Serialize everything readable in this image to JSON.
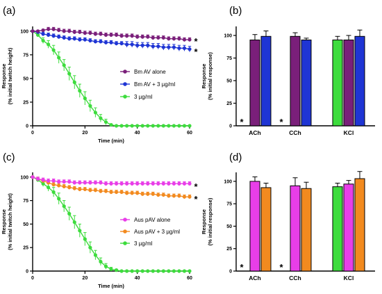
{
  "chart_data": [
    {
      "panel_label": "(a)",
      "type": "line",
      "xlabel": "Time (min)",
      "ylabel": [
        "Response",
        "(% initial twitch height)"
      ],
      "xlim": [
        0,
        60
      ],
      "ylim": [
        0,
        105
      ],
      "xticks": [
        0,
        20,
        40,
        60
      ],
      "yticks": [
        0,
        25,
        50,
        75,
        100
      ],
      "grid": false,
      "legend_position": "center-right",
      "significance_marks": [
        {
          "text": "*",
          "series": 0,
          "color": "#7a1f7a"
        },
        {
          "text": "*",
          "series": 1,
          "color": "#1f35d4"
        }
      ],
      "x": [
        0,
        2,
        4,
        6,
        8,
        10,
        12,
        14,
        16,
        18,
        20,
        22,
        24,
        26,
        28,
        30,
        32,
        34,
        36,
        38,
        40,
        42,
        44,
        46,
        48,
        50,
        52,
        54,
        56,
        58,
        60
      ],
      "series": [
        {
          "name": "Bm AV alone",
          "color": "#7a1f7a",
          "values": [
            100,
            100,
            101,
            102,
            102,
            101,
            100,
            100,
            99,
            99,
            98,
            98,
            97,
            97,
            96,
            96,
            96,
            95,
            95,
            95,
            94,
            94,
            94,
            93,
            93,
            93,
            92,
            92,
            92,
            91,
            91
          ],
          "errors": [
            1,
            1,
            1,
            2,
            2,
            2,
            2,
            2,
            2,
            2,
            2,
            2,
            2,
            2,
            2,
            2,
            2,
            2,
            2,
            2,
            2,
            2,
            2,
            2,
            2,
            2,
            2,
            2,
            2,
            2,
            2
          ]
        },
        {
          "name": "Bm AV + 3 µg/ml",
          "color": "#1f35d4",
          "values": [
            100,
            99,
            97,
            96,
            95,
            94,
            93,
            92,
            92,
            91,
            91,
            90,
            89,
            89,
            88,
            88,
            87,
            87,
            86,
            86,
            85,
            85,
            85,
            84,
            84,
            83,
            83,
            83,
            82,
            82,
            81
          ],
          "errors": [
            1,
            1,
            2,
            2,
            2,
            2,
            2,
            2,
            2,
            2,
            2,
            2,
            2,
            2,
            2,
            2,
            2,
            2,
            3,
            3,
            3,
            3,
            3,
            3,
            3,
            3,
            3,
            3,
            3,
            3,
            3
          ]
        },
        {
          "name": "3 µg/ml",
          "color": "#3ddc3d",
          "values": [
            100,
            96,
            90,
            86,
            80,
            72,
            64,
            55,
            46,
            37,
            29,
            21,
            14,
            8,
            4,
            1,
            0,
            0,
            0,
            0,
            0,
            0,
            0,
            0,
            0,
            0,
            0,
            0,
            0,
            0,
            0
          ],
          "errors": [
            1,
            2,
            3,
            4,
            5,
            6,
            6,
            7,
            7,
            7,
            7,
            6,
            5,
            4,
            3,
            1,
            0,
            0,
            0,
            0,
            0,
            0,
            0,
            0,
            0,
            0,
            0,
            0,
            0,
            0,
            0
          ]
        }
      ]
    },
    {
      "panel_label": "(b)",
      "type": "bar",
      "ylabel": [
        "Response",
        "(% initial response)"
      ],
      "ylim": [
        0,
        110
      ],
      "yticks": [
        0,
        25,
        50,
        75,
        100
      ],
      "categories": [
        "ACh",
        "CCh",
        "KCl"
      ],
      "grid": false,
      "significance_marks": [
        {
          "text": "*",
          "category": "ACh",
          "color": "#3ddc3d"
        },
        {
          "text": "*",
          "category": "CCh",
          "color": "#3ddc3d"
        }
      ],
      "series": [
        {
          "color": "#3ddc3d",
          "values": [
            0,
            0,
            95
          ],
          "errors": [
            0,
            0,
            4
          ]
        },
        {
          "color": "#7a1f7a",
          "values": [
            95,
            99,
            95
          ],
          "errors": [
            6,
            4,
            5
          ]
        },
        {
          "color": "#1f35d4",
          "values": [
            99,
            95,
            99
          ],
          "errors": [
            6,
            2,
            7
          ]
        }
      ]
    },
    {
      "panel_label": "(c)",
      "type": "line",
      "xlabel": "Time (min)",
      "ylabel": [
        "Response",
        "(% initial twitch height)"
      ],
      "xlim": [
        0,
        60
      ],
      "ylim": [
        0,
        105
      ],
      "xticks": [
        0,
        20,
        40,
        60
      ],
      "yticks": [
        0,
        25,
        50,
        75,
        100
      ],
      "grid": false,
      "legend_position": "center-right",
      "significance_marks": [
        {
          "text": "*",
          "series": 0,
          "color": "#e83ee8"
        },
        {
          "text": "*",
          "series": 1,
          "color": "#f28a1f"
        }
      ],
      "x": [
        0,
        2,
        4,
        6,
        8,
        10,
        12,
        14,
        16,
        18,
        20,
        22,
        24,
        26,
        28,
        30,
        32,
        34,
        36,
        38,
        40,
        42,
        44,
        46,
        48,
        50,
        52,
        54,
        56,
        58,
        60
      ],
      "series": [
        {
          "name": "Aus pAV alone",
          "color": "#e83ee8",
          "values": [
            100,
            98,
            97,
            96,
            96,
            95,
            95,
            95,
            94,
            94,
            94,
            94,
            94,
            94,
            93,
            93,
            93,
            93,
            93,
            93,
            93,
            93,
            93,
            93,
            93,
            93,
            93,
            93,
            93,
            93,
            93
          ],
          "errors": [
            1,
            2,
            2,
            2,
            2,
            2,
            2,
            2,
            2,
            2,
            2,
            2,
            2,
            2,
            2,
            2,
            2,
            2,
            2,
            2,
            2,
            2,
            2,
            2,
            2,
            2,
            2,
            2,
            2,
            2,
            2
          ]
        },
        {
          "name": "Aus pAV + 3 µg/ml",
          "color": "#f28a1f",
          "values": [
            100,
            98,
            96,
            94,
            92,
            91,
            90,
            89,
            88,
            87,
            87,
            86,
            86,
            85,
            85,
            84,
            84,
            84,
            83,
            83,
            83,
            82,
            82,
            82,
            81,
            81,
            80,
            80,
            80,
            79,
            79
          ],
          "errors": [
            1,
            2,
            2,
            2,
            2,
            2,
            2,
            2,
            2,
            2,
            2,
            2,
            2,
            2,
            2,
            2,
            2,
            2,
            2,
            2,
            2,
            2,
            2,
            2,
            2,
            2,
            2,
            2,
            2,
            2,
            2
          ]
        },
        {
          "name": "3 µg/ml",
          "color": "#3ddc3d",
          "values": [
            100,
            97,
            93,
            89,
            84,
            77,
            69,
            61,
            52,
            43,
            34,
            25,
            17,
            10,
            5,
            2,
            1,
            0,
            0,
            0,
            0,
            0,
            0,
            0,
            0,
            0,
            0,
            0,
            0,
            0,
            0
          ],
          "errors": [
            1,
            2,
            3,
            4,
            5,
            6,
            6,
            7,
            7,
            7,
            7,
            6,
            5,
            4,
            3,
            2,
            1,
            0,
            0,
            0,
            0,
            0,
            0,
            0,
            0,
            0,
            0,
            0,
            0,
            0,
            0
          ]
        }
      ]
    },
    {
      "panel_label": "(d)",
      "type": "bar",
      "ylabel": [
        "Response",
        "(% initial response)"
      ],
      "ylim": [
        0,
        110
      ],
      "yticks": [
        0,
        25,
        50,
        75,
        100
      ],
      "categories": [
        "ACh",
        "CCh",
        "KCl"
      ],
      "grid": false,
      "significance_marks": [
        {
          "text": "*",
          "category": "ACh",
          "color": "#3ddc3d"
        },
        {
          "text": "*",
          "category": "CCh",
          "color": "#3ddc3d"
        }
      ],
      "series": [
        {
          "color": "#3ddc3d",
          "values": [
            0,
            0,
            94
          ],
          "errors": [
            0,
            0,
            4
          ]
        },
        {
          "color": "#e83ee8",
          "values": [
            100,
            95,
            97
          ],
          "errors": [
            5,
            9,
            4
          ]
        },
        {
          "color": "#f28a1f",
          "values": [
            93,
            92,
            103
          ],
          "errors": [
            5,
            7,
            8
          ]
        }
      ]
    }
  ]
}
